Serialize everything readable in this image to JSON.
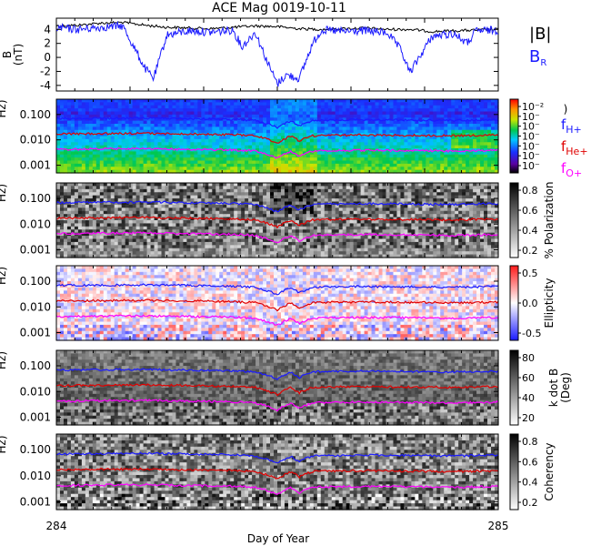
{
  "chart_data": {
    "type": "line",
    "title": "ACE Mag 0019-10-11",
    "xlabel": "Day of Year",
    "x_ticks": [
      "284",
      "285"
    ],
    "xlim": [
      284,
      285
    ],
    "colors": {
      "B_total": "#000000",
      "B_R": "#1a1aff",
      "f_H": "#1a1aff",
      "f_He": "#e00000",
      "f_O": "#ff00ff"
    },
    "panels": [
      {
        "id": "mag",
        "ylabel_lines": [
          "B",
          "(nT)"
        ],
        "y_ticks": [
          "4",
          "2",
          "0",
          "-2",
          "-4"
        ],
        "ylim": [
          -4.8,
          5.6
        ],
        "legend": [
          "|B|",
          "B_R"
        ],
        "series": [
          {
            "name": "|B|",
            "color": "#000000",
            "x": [
              284.0,
              284.05,
              284.1,
              284.15,
              284.2,
              284.25,
              284.3,
              284.35,
              284.4,
              284.45,
              284.5,
              284.55,
              284.6,
              284.65,
              284.7,
              284.75,
              284.8,
              284.85,
              284.9,
              284.95,
              285.0
            ],
            "y": [
              4.5,
              4.6,
              4.9,
              5.0,
              4.6,
              4.3,
              4.2,
              4.1,
              4.3,
              4.5,
              4.4,
              4.1,
              4.0,
              4.1,
              4.2,
              4.0,
              4.0,
              3.7,
              3.8,
              3.9,
              4.0
            ]
          },
          {
            "name": "B_R",
            "color": "#1a1aff",
            "x": [
              284.0,
              284.05,
              284.1,
              284.15,
              284.2,
              284.22,
              284.25,
              284.3,
              284.35,
              284.4,
              284.42,
              284.45,
              284.48,
              284.5,
              284.52,
              284.55,
              284.58,
              284.6,
              284.65,
              284.7,
              284.75,
              284.78,
              284.8,
              284.85,
              284.9,
              284.93,
              284.95,
              285.0
            ],
            "y": [
              4.2,
              4.0,
              4.3,
              4.5,
              -1.5,
              -3.0,
              3.2,
              3.8,
              3.6,
              3.9,
              1.5,
              3.6,
              -1.0,
              -3.8,
              -2.5,
              -3.0,
              2.0,
              3.9,
              3.7,
              3.8,
              3.5,
              1.0,
              -2.2,
              3.0,
              3.4,
              2.0,
              3.8,
              3.9
            ]
          }
        ]
      },
      {
        "id": "power",
        "ylabel_lines": [
          "Hz)"
        ],
        "y_ticks": [
          "0.100",
          "0.010",
          "0.001"
        ],
        "ylim": [
          0.0005,
          0.4
        ],
        "y_scale": "log",
        "colorbar": {
          "ticks": [
            "10⁻²",
            "10⁻",
            "10⁻",
            "10⁻",
            "10⁻",
            "10⁻",
            "10⁻"
          ],
          "label": ")",
          "map": "rainbow"
        },
        "legend": [
          "f_H+",
          "f_He+",
          "f_O+"
        ]
      },
      {
        "id": "polarization",
        "ylabel_lines": [
          "Hz)"
        ],
        "y_ticks": [
          "0.100",
          "0.010",
          "0.001"
        ],
        "ylim": [
          0.0005,
          0.4
        ],
        "y_scale": "log",
        "colorbar": {
          "ticks": [
            "0.8",
            "0.6",
            "0.4",
            "0.2"
          ],
          "label": "% Polarization",
          "map": "gray"
        }
      },
      {
        "id": "ellipticity",
        "ylabel_lines": [
          "Hz)"
        ],
        "y_ticks": [
          "0.100",
          "0.010",
          "0.001"
        ],
        "ylim": [
          0.0005,
          0.4
        ],
        "y_scale": "log",
        "colorbar": {
          "ticks": [
            "0.5",
            "0.0",
            "-0.5"
          ],
          "label": "Ellipticity",
          "map": "bwr"
        }
      },
      {
        "id": "kdotb",
        "ylabel_lines": [
          "Hz)"
        ],
        "y_ticks": [
          "0.100",
          "0.010",
          "0.001"
        ],
        "ylim": [
          0.0005,
          0.4
        ],
        "y_scale": "log",
        "colorbar": {
          "ticks": [
            "80",
            "60",
            "40",
            "20"
          ],
          "label_lines": [
            "k dot B",
            "(Deg)"
          ],
          "map": "gray"
        }
      },
      {
        "id": "coherency",
        "ylabel_lines": [
          "Hz)"
        ],
        "y_ticks": [
          "0.100",
          "0.010",
          "0.001"
        ],
        "ylim": [
          0.0005,
          0.4
        ],
        "y_scale": "log",
        "colorbar": {
          "ticks": [
            "0.8",
            "0.6",
            "0.4",
            "0.2"
          ],
          "label": "Coherency",
          "map": "gray"
        }
      }
    ],
    "gyro_lines": [
      {
        "name": "f_H+",
        "color": "#1a1aff",
        "x": [
          284.0,
          284.1,
          284.2,
          284.3,
          284.4,
          284.45,
          284.5,
          284.53,
          284.55,
          284.58,
          284.6,
          284.7,
          284.8,
          284.9,
          285.0
        ],
        "y": [
          0.068,
          0.07,
          0.072,
          0.068,
          0.064,
          0.058,
          0.03,
          0.055,
          0.035,
          0.058,
          0.06,
          0.062,
          0.06,
          0.058,
          0.062
        ]
      },
      {
        "name": "f_He+",
        "color": "#e00000",
        "x": [
          284.0,
          284.1,
          284.2,
          284.3,
          284.4,
          284.45,
          284.5,
          284.53,
          284.55,
          284.58,
          284.6,
          284.7,
          284.8,
          284.9,
          285.0
        ],
        "y": [
          0.017,
          0.0175,
          0.018,
          0.017,
          0.016,
          0.0145,
          0.0075,
          0.014,
          0.009,
          0.0145,
          0.015,
          0.0155,
          0.015,
          0.0145,
          0.0155
        ]
      },
      {
        "name": "f_O+",
        "color": "#ff00ff",
        "x": [
          284.0,
          284.1,
          284.2,
          284.3,
          284.4,
          284.45,
          284.5,
          284.53,
          284.55,
          284.58,
          284.6,
          284.7,
          284.8,
          284.9,
          285.0
        ],
        "y": [
          0.0042,
          0.0044,
          0.0045,
          0.0042,
          0.004,
          0.0036,
          0.0019,
          0.0035,
          0.0022,
          0.0036,
          0.0037,
          0.0039,
          0.0038,
          0.0036,
          0.0039
        ]
      }
    ]
  }
}
